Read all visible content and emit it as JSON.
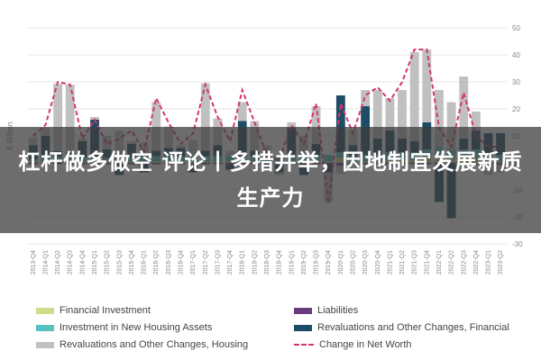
{
  "overlay_title": "杠杆做多做空 评论丨多措并举，因地制宜发展新质生产力",
  "chart_data": {
    "type": "bar",
    "ylabel": "€ Billion",
    "ylim": [
      -30,
      50
    ],
    "yticks": [
      50,
      40,
      30,
      20,
      10,
      0,
      -10,
      -20,
      -30
    ],
    "categories": [
      "2013-Q4",
      "2014-Q1",
      "2014-Q2",
      "2014-Q3",
      "2014-Q4",
      "2015-Q1",
      "2015-Q2",
      "2015-Q3",
      "2015-Q4",
      "2016-Q1",
      "2016-Q2",
      "2016-Q3",
      "2016-Q4",
      "2017-Q1",
      "2017-Q2",
      "2017-Q3",
      "2017-Q4",
      "2018-Q1",
      "2018-Q2",
      "2018-Q3",
      "2018-Q4",
      "2019-Q1",
      "2019-Q2",
      "2019-Q3",
      "2019-Q4",
      "2020-Q1",
      "2020-Q2",
      "2020-Q3",
      "2020-Q4",
      "2021-Q1",
      "2021-Q2",
      "2021-Q3",
      "2021-Q4",
      "2022-Q1",
      "2022-Q2",
      "2022-Q3",
      "2022-Q4",
      "2023-Q1",
      "2023-Q2"
    ],
    "series": [
      {
        "name": "Financial Investment",
        "color": "#cfdc8a",
        "values": [
          0.5,
          0.5,
          0.8,
          0.5,
          0.5,
          0.5,
          0.5,
          0.3,
          0.5,
          0.5,
          0.5,
          0.5,
          0.5,
          0.5,
          0.5,
          0.5,
          0.5,
          0.5,
          0.5,
          0.5,
          0.5,
          0.5,
          0.5,
          0.5,
          0.5,
          2,
          0.5,
          0.5,
          0.5,
          1,
          1,
          1,
          2,
          3,
          1.5,
          2,
          2,
          0.5,
          0.5
        ]
      },
      {
        "name": "Liabilities",
        "color": "#6b3b7f",
        "values": [
          -0.5,
          -0.5,
          -0.5,
          -0.5,
          -0.5,
          -0.5,
          -0.5,
          -0.5,
          -0.5,
          -0.5,
          -0.5,
          -0.5,
          -0.5,
          -0.5,
          -0.5,
          -0.5,
          -0.5,
          -0.5,
          -0.5,
          -0.5,
          -0.5,
          -0.5,
          -0.5,
          -0.5,
          -0.5,
          -1,
          -0.5,
          -0.5,
          -0.5,
          -0.5,
          -0.5,
          -0.5,
          -0.5,
          -0.5,
          -0.5,
          -0.5,
          -0.5,
          -0.5,
          -0.5
        ]
      },
      {
        "name": "Investment in New Housing Assets",
        "color": "#52c3bf",
        "values": [
          1,
          1.5,
          1.5,
          1.5,
          1.5,
          1.5,
          1.5,
          1.5,
          1.5,
          2,
          2,
          2,
          2,
          2,
          2,
          2,
          2,
          2,
          2,
          2,
          2,
          2.5,
          2.5,
          2.5,
          2.5,
          2,
          2,
          2.5,
          2.5,
          3,
          3,
          3,
          3,
          3,
          3,
          3,
          3,
          2.5,
          2.5
        ]
      },
      {
        "name": "Revaluations and Other Changes, Financial",
        "color": "#1d4d66",
        "values": [
          5,
          8,
          2,
          2,
          6,
          14,
          3,
          -4,
          5,
          -3,
          2,
          3,
          3,
          -3,
          2,
          4,
          -2,
          13,
          2,
          -2,
          -3,
          10,
          -4,
          4,
          -3,
          21,
          4,
          18,
          6,
          8,
          5,
          4,
          10,
          -14,
          -20,
          4,
          7,
          8,
          8
        ]
      },
      {
        "name": "Revaluations and Other Changes, Housing",
        "color": "#c0c0c0",
        "values": [
          3,
          3,
          25,
          25,
          1,
          1,
          5,
          10,
          1,
          5,
          18,
          8,
          1,
          6,
          25,
          10,
          2,
          7,
          11,
          4,
          -1,
          2,
          7,
          14,
          -11,
          -3,
          6,
          6,
          18,
          12,
          18,
          33,
          27,
          21,
          18,
          23,
          7,
          -4,
          -3
        ]
      }
    ],
    "net": {
      "name": "Change in Net Worth",
      "color": "#d6366e",
      "values": [
        10,
        14,
        30,
        29,
        9,
        16,
        7,
        9,
        12,
        4,
        24,
        15,
        7,
        11,
        29,
        17,
        8,
        27,
        15,
        3,
        1,
        14,
        7,
        22,
        -15,
        22,
        11,
        25,
        28,
        23,
        30,
        42,
        42,
        13,
        6,
        26,
        10,
        6,
        6
      ]
    },
    "grid": true,
    "legend_position": "bottom"
  }
}
